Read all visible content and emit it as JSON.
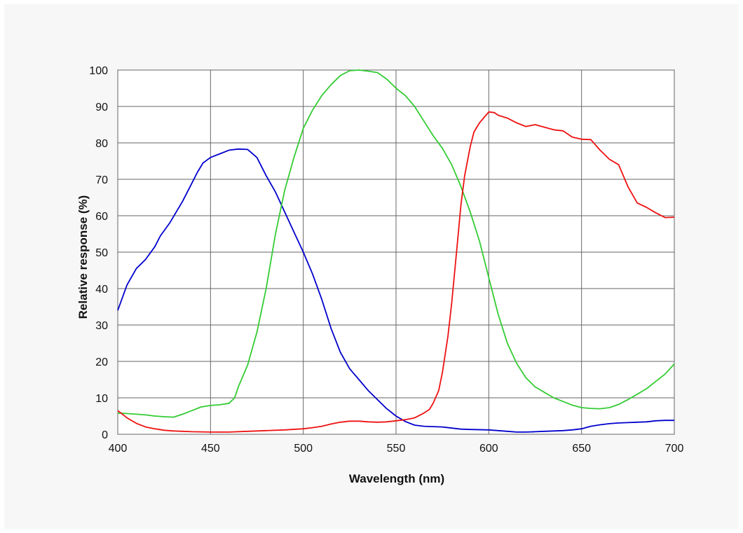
{
  "chart_data": {
    "type": "line",
    "xlabel": "Wavelength (nm)",
    "ylabel": "Relative response (%)",
    "xlim": [
      400,
      700
    ],
    "ylim": [
      0,
      100
    ],
    "xticks": [
      400,
      450,
      500,
      550,
      600,
      650,
      700
    ],
    "yticks": [
      0,
      10,
      20,
      30,
      40,
      50,
      60,
      70,
      80,
      90,
      100
    ],
    "grid": true,
    "legend": "none",
    "series": [
      {
        "color": "#0000cc",
        "points": [
          [
            400,
            34
          ],
          [
            405,
            41
          ],
          [
            410,
            45.5
          ],
          [
            415,
            48
          ],
          [
            420,
            51.5
          ],
          [
            423,
            54.5
          ],
          [
            428,
            58
          ],
          [
            435,
            64
          ],
          [
            440,
            69
          ],
          [
            443,
            72
          ],
          [
            446,
            74.5
          ],
          [
            450,
            76
          ],
          [
            455,
            77
          ],
          [
            460,
            78
          ],
          [
            465,
            78.3
          ],
          [
            470,
            78.2
          ],
          [
            475,
            76
          ],
          [
            480,
            71
          ],
          [
            485,
            66.5
          ],
          [
            490,
            61
          ],
          [
            495,
            55.5
          ],
          [
            500,
            50
          ],
          [
            505,
            44
          ],
          [
            510,
            37
          ],
          [
            515,
            29
          ],
          [
            520,
            22.5
          ],
          [
            525,
            18
          ],
          [
            530,
            15
          ],
          [
            535,
            12
          ],
          [
            540,
            9.5
          ],
          [
            545,
            7
          ],
          [
            550,
            5
          ],
          [
            555,
            3.5
          ],
          [
            560,
            2.5
          ],
          [
            565,
            2.2
          ],
          [
            570,
            2.1
          ],
          [
            575,
            2
          ],
          [
            580,
            1.7
          ],
          [
            585,
            1.4
          ],
          [
            590,
            1.3
          ],
          [
            600,
            1.2
          ],
          [
            605,
            1
          ],
          [
            610,
            0.8
          ],
          [
            615,
            0.6
          ],
          [
            620,
            0.6
          ],
          [
            625,
            0.7
          ],
          [
            630,
            0.8
          ],
          [
            640,
            1
          ],
          [
            645,
            1.2
          ],
          [
            650,
            1.5
          ],
          [
            655,
            2.2
          ],
          [
            660,
            2.6
          ],
          [
            665,
            2.9
          ],
          [
            670,
            3.1
          ],
          [
            675,
            3.2
          ],
          [
            680,
            3.3
          ],
          [
            685,
            3.4
          ],
          [
            690,
            3.7
          ],
          [
            695,
            3.8
          ],
          [
            700,
            3.8
          ]
        ]
      },
      {
        "color": "#33cc33",
        "points": [
          [
            400,
            5.8
          ],
          [
            405,
            5.7
          ],
          [
            410,
            5.5
          ],
          [
            415,
            5.3
          ],
          [
            420,
            5
          ],
          [
            425,
            4.8
          ],
          [
            430,
            4.7
          ],
          [
            435,
            5.5
          ],
          [
            440,
            6.5
          ],
          [
            445,
            7.5
          ],
          [
            450,
            7.9
          ],
          [
            455,
            8.1
          ],
          [
            460,
            8.5
          ],
          [
            463,
            10
          ],
          [
            465,
            13
          ],
          [
            470,
            19
          ],
          [
            475,
            28
          ],
          [
            480,
            40
          ],
          [
            485,
            55
          ],
          [
            490,
            67
          ],
          [
            495,
            76
          ],
          [
            500,
            84
          ],
          [
            505,
            89
          ],
          [
            510,
            93
          ],
          [
            515,
            96
          ],
          [
            520,
            98.5
          ],
          [
            525,
            99.8
          ],
          [
            530,
            100
          ],
          [
            535,
            99.7
          ],
          [
            540,
            99.3
          ],
          [
            545,
            97.5
          ],
          [
            550,
            95
          ],
          [
            555,
            93
          ],
          [
            560,
            90
          ],
          [
            565,
            86
          ],
          [
            570,
            82
          ],
          [
            575,
            78.5
          ],
          [
            580,
            74
          ],
          [
            585,
            68
          ],
          [
            590,
            61
          ],
          [
            595,
            53
          ],
          [
            600,
            43
          ],
          [
            605,
            33
          ],
          [
            610,
            25
          ],
          [
            615,
            19.5
          ],
          [
            620,
            15.5
          ],
          [
            625,
            13
          ],
          [
            630,
            11.5
          ],
          [
            635,
            10
          ],
          [
            640,
            9
          ],
          [
            645,
            8
          ],
          [
            650,
            7.3
          ],
          [
            655,
            7.1
          ],
          [
            660,
            7
          ],
          [
            665,
            7.3
          ],
          [
            670,
            8.2
          ],
          [
            675,
            9.5
          ],
          [
            680,
            11
          ],
          [
            685,
            12.5
          ],
          [
            690,
            14.5
          ],
          [
            695,
            16.5
          ],
          [
            700,
            19.3
          ]
        ]
      },
      {
        "color": "#ee1111",
        "points": [
          [
            400,
            6.5
          ],
          [
            405,
            4.5
          ],
          [
            410,
            3
          ],
          [
            415,
            2
          ],
          [
            420,
            1.5
          ],
          [
            425,
            1.1
          ],
          [
            430,
            0.9
          ],
          [
            440,
            0.7
          ],
          [
            450,
            0.6
          ],
          [
            460,
            0.6
          ],
          [
            470,
            0.8
          ],
          [
            480,
            1
          ],
          [
            490,
            1.2
          ],
          [
            500,
            1.5
          ],
          [
            505,
            1.8
          ],
          [
            510,
            2.2
          ],
          [
            515,
            2.8
          ],
          [
            520,
            3.3
          ],
          [
            525,
            3.6
          ],
          [
            530,
            3.6
          ],
          [
            535,
            3.4
          ],
          [
            540,
            3.3
          ],
          [
            545,
            3.4
          ],
          [
            550,
            3.7
          ],
          [
            555,
            4
          ],
          [
            560,
            4.5
          ],
          [
            565,
            5.8
          ],
          [
            568,
            6.8
          ],
          [
            570,
            8.5
          ],
          [
            573,
            12
          ],
          [
            575,
            17
          ],
          [
            578,
            27
          ],
          [
            580,
            36
          ],
          [
            583,
            52
          ],
          [
            585,
            63
          ],
          [
            587,
            71
          ],
          [
            590,
            79
          ],
          [
            592,
            83
          ],
          [
            595,
            85.5
          ],
          [
            598,
            87.3
          ],
          [
            600,
            88.5
          ],
          [
            603,
            88.3
          ],
          [
            605,
            87.6
          ],
          [
            610,
            86.8
          ],
          [
            615,
            85.5
          ],
          [
            620,
            84.5
          ],
          [
            625,
            85
          ],
          [
            630,
            84.3
          ],
          [
            635,
            83.6
          ],
          [
            640,
            83.3
          ],
          [
            645,
            81.6
          ],
          [
            650,
            81
          ],
          [
            655,
            80.9
          ],
          [
            660,
            78
          ],
          [
            665,
            75.5
          ],
          [
            670,
            74
          ],
          [
            675,
            68
          ],
          [
            680,
            63.5
          ],
          [
            685,
            62.3
          ],
          [
            690,
            60.8
          ],
          [
            695,
            59.5
          ],
          [
            700,
            59.6
          ]
        ]
      }
    ]
  }
}
